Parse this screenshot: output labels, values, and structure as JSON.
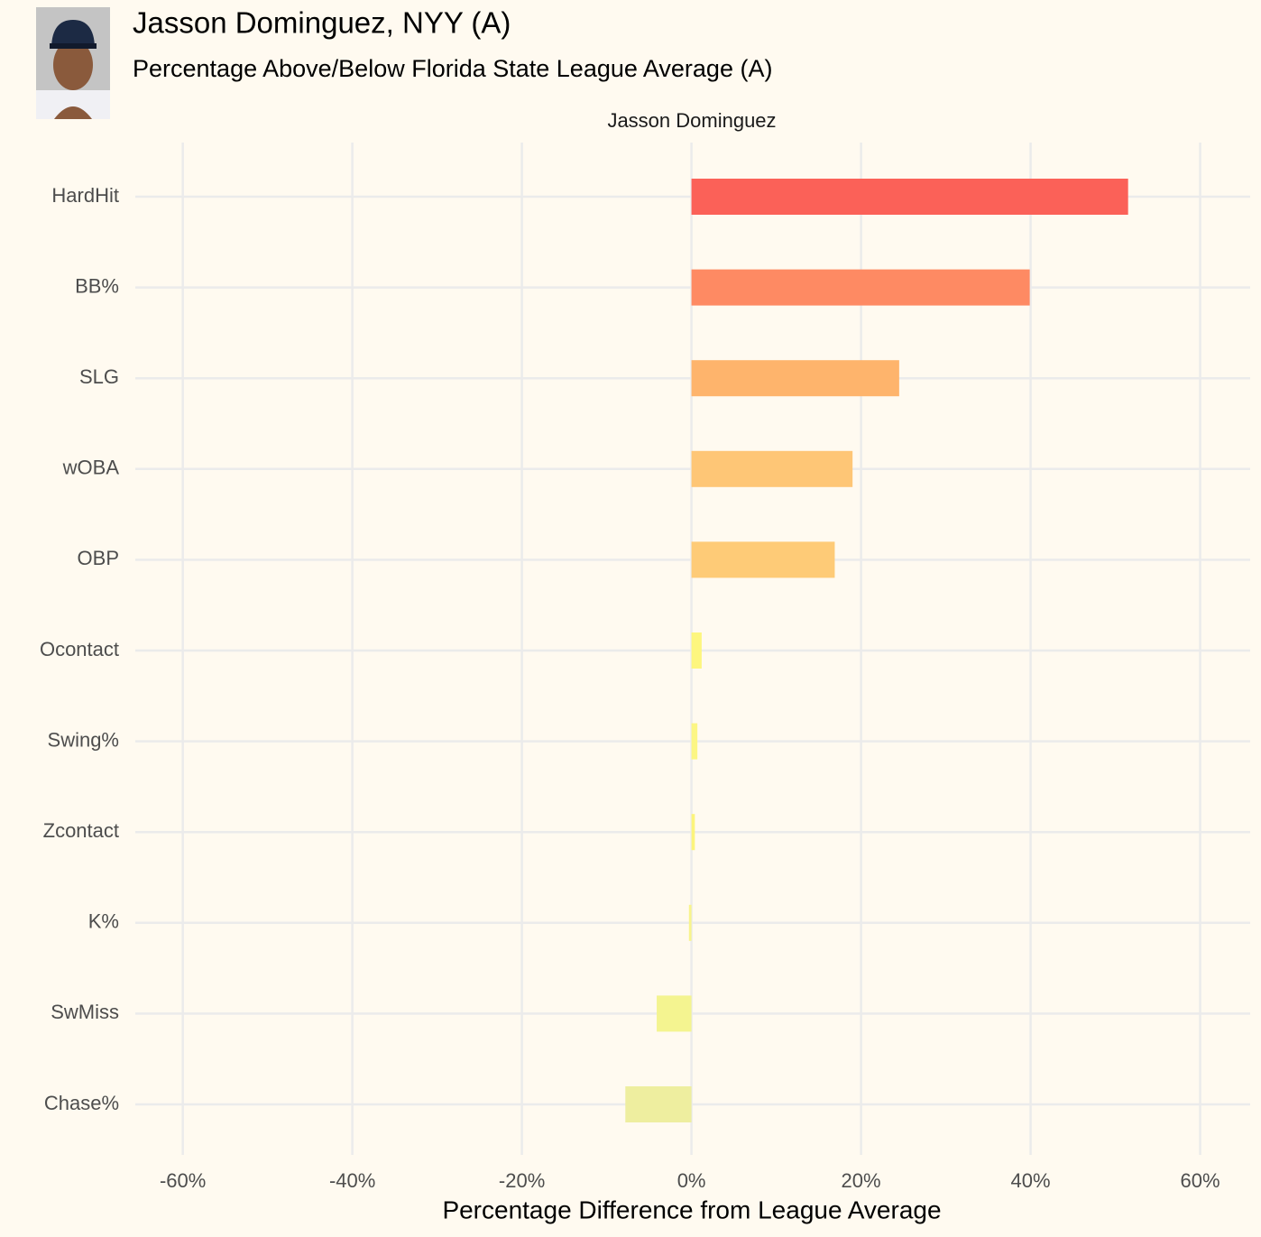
{
  "chart_data": {
    "type": "barh",
    "title": "Jasson Dominguez, NYY (A)",
    "subtitle": "Percentage Above/Below Florida State League Average (A)",
    "facet_label": "Jasson Dominguez",
    "x_label": "Percentage Difference from League Average",
    "categories": [
      "HardHit",
      "BB%",
      "SLG",
      "wOBA",
      "OBP",
      "Ocontact",
      "Swing%",
      "Zcontact",
      "K%",
      "SwMiss",
      "Chase%"
    ],
    "values": [
      51.5,
      39.9,
      24.5,
      19.0,
      16.9,
      1.2,
      0.7,
      0.4,
      -0.3,
      -4.1,
      -7.8
    ],
    "colors": [
      "#fb6158",
      "#fe8a63",
      "#feb46c",
      "#fec676",
      "#fecb77",
      "#fdf67e",
      "#fcf684",
      "#fcf47c",
      "#f8f48c",
      "#f4f490",
      "#eeee9f"
    ],
    "xlim": [
      -65.6,
      65.9
    ],
    "xticks": [
      {
        "value": -60,
        "label": "-60%"
      },
      {
        "value": -40,
        "label": "-40%"
      },
      {
        "value": -20,
        "label": "-20%"
      },
      {
        "value": 0,
        "label": "0%"
      },
      {
        "value": 20,
        "label": "20%"
      },
      {
        "value": 40,
        "label": "40%"
      },
      {
        "value": 60,
        "label": "60%"
      }
    ],
    "grid": true
  }
}
